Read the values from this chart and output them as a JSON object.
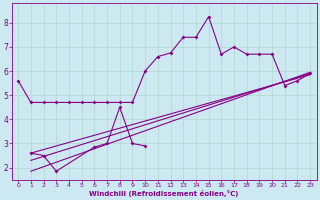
{
  "xlabel": "Windchill (Refroidissement éolien,°C)",
  "background_color": "#cce8f0",
  "grid_color": "#b0d8cc",
  "line_color": "#880088",
  "xlim": [
    -0.5,
    23.5
  ],
  "ylim": [
    1.5,
    8.8
  ],
  "xticks": [
    0,
    1,
    2,
    3,
    4,
    5,
    6,
    7,
    8,
    9,
    10,
    11,
    12,
    13,
    14,
    15,
    16,
    17,
    18,
    19,
    20,
    21,
    22,
    23
  ],
  "yticks": [
    2,
    3,
    4,
    5,
    6,
    7,
    8
  ],
  "series1_x": [
    0,
    1,
    2,
    3,
    4,
    5,
    6,
    7,
    8,
    9,
    10,
    11,
    12,
    13,
    14,
    15,
    16,
    17,
    18,
    19,
    20,
    21,
    22,
    23
  ],
  "series1_y": [
    5.6,
    4.7,
    4.7,
    4.7,
    4.7,
    4.7,
    4.7,
    4.7,
    4.7,
    4.7,
    6.0,
    6.6,
    6.75,
    7.4,
    7.4,
    8.25,
    6.7,
    7.0,
    6.7,
    6.7,
    6.7,
    5.4,
    5.6,
    5.9
  ],
  "series2_x": [
    1,
    2,
    3,
    6,
    7,
    8,
    9,
    10
  ],
  "series2_y": [
    2.6,
    2.5,
    1.85,
    2.85,
    3.0,
    4.5,
    3.0,
    2.9
  ],
  "trend1_x": [
    1,
    23
  ],
  "trend1_y": [
    2.3,
    5.9
  ],
  "trend2_x": [
    1,
    23
  ],
  "trend2_y": [
    2.6,
    5.85
  ],
  "trend3_x": [
    1,
    23
  ],
  "trend3_y": [
    1.85,
    5.95
  ]
}
